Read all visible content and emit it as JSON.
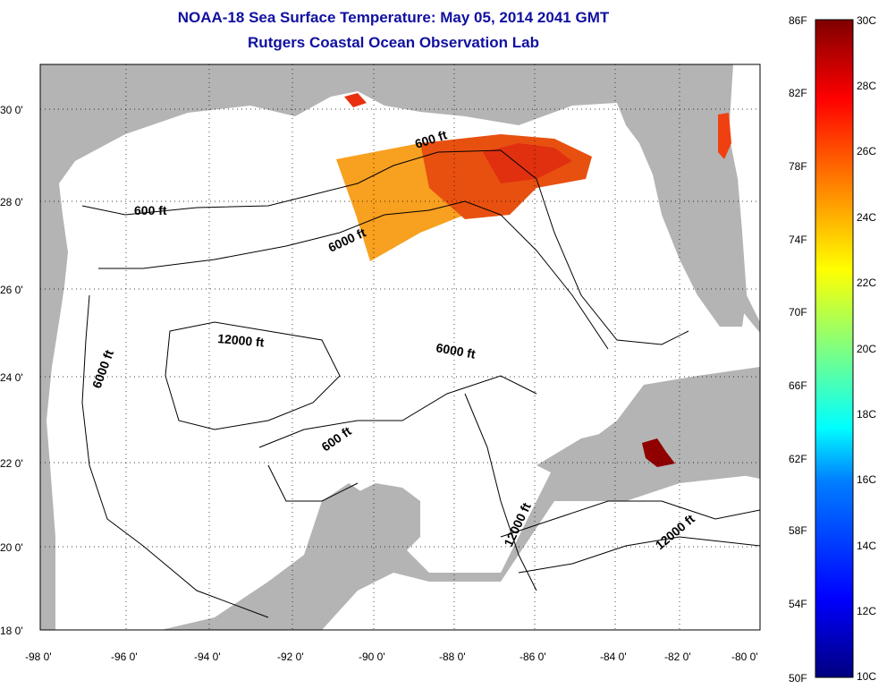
{
  "title": {
    "line1": "NOAA-18 Sea Surface Temperature:  May 05, 2014 2041 GMT",
    "line2": "Rutgers Coastal Ocean Observation Lab"
  },
  "axes": {
    "lon_labels": [
      "-98 0'",
      "-96 0'",
      "-94 0'",
      "-92 0'",
      "-90 0'",
      "-88 0'",
      "-86 0'",
      "-84 0'",
      "-82 0'",
      "-80 0'"
    ],
    "lat_labels": [
      "30 0'",
      "28 0'",
      "26 0'",
      "24 0'",
      "22 0'",
      "20 0'",
      "18 0'"
    ]
  },
  "contours": {
    "labels": [
      "600 ft",
      "600 ft",
      "6000 ft",
      "12000 ft",
      "6000 ft",
      "6000 ft",
      "600 ft",
      "12000 ft",
      "12000 ft"
    ]
  },
  "colorbar": {
    "f_labels": [
      "86F",
      "82F",
      "78F",
      "74F",
      "70F",
      "66F",
      "62F",
      "58F",
      "54F",
      "50F"
    ],
    "c_labels": [
      "30C",
      "28C",
      "26C",
      "24C",
      "22C",
      "20C",
      "18C",
      "16C",
      "14C",
      "12C",
      "10C"
    ]
  },
  "colors": {
    "title": "#1010a0",
    "land": "#b4b4b4",
    "ocean": "#ffffff",
    "sst_warm": "#e85010",
    "sst_mid": "#f8a020"
  }
}
